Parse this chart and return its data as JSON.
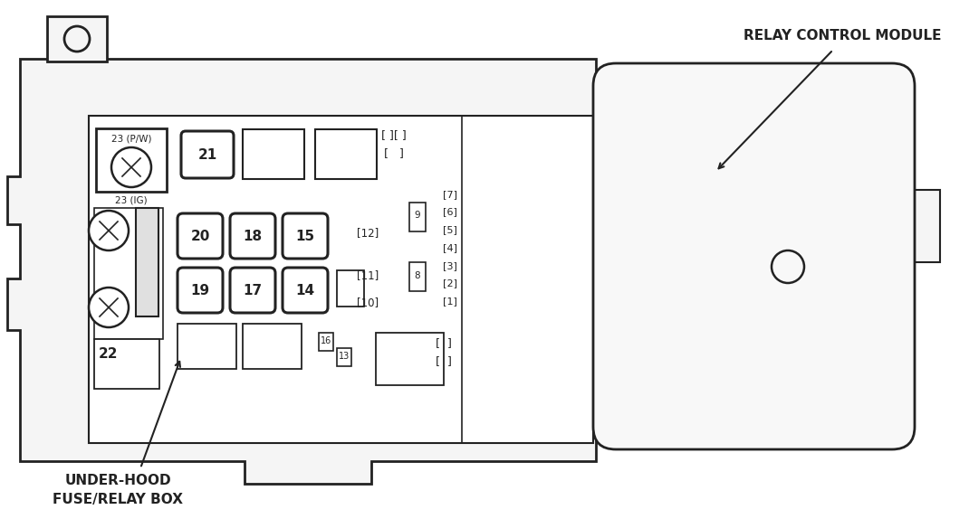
{
  "bg_color": "#ffffff",
  "line_color": "#222222",
  "label_relay_control": "RELAY CONTROL MODULE",
  "label_underhood_1": "UNDER-HOOD",
  "label_underhood_2": "FUSE/RELAY BOX"
}
